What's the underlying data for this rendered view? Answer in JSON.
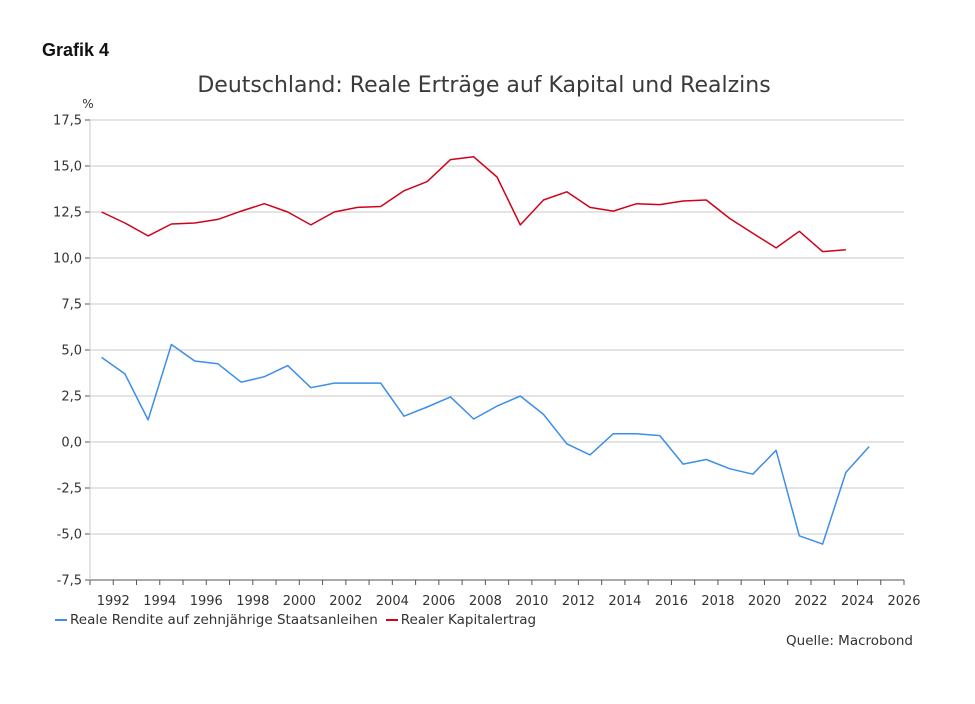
{
  "header": {
    "label": "Grafik 4"
  },
  "source": "Quelle: Macrobond",
  "colors": {
    "red": "#d0021b",
    "blue": "#3d8ee8",
    "grid": "#c8c8c8",
    "axis": "#555555"
  },
  "chart_data": {
    "type": "line",
    "title": "Deutschland: Reale Erträge auf Kapital und Realzins",
    "ylabel": "%",
    "ylim": [
      -7.5,
      17.5
    ],
    "yticks": [
      -7.5,
      -5.0,
      -2.5,
      0.0,
      2.5,
      5.0,
      7.5,
      10.0,
      12.5,
      15.0,
      17.5
    ],
    "ytick_labels": [
      "-7,5",
      "-5,0",
      "-2,5",
      "0,0",
      "2,5",
      "5,0",
      "7,5",
      "10,0",
      "12,5",
      "15,0",
      "17,5"
    ],
    "xlim": [
      1991,
      2026
    ],
    "xticks": [
      1992,
      1994,
      1996,
      1998,
      2000,
      2002,
      2004,
      2006,
      2008,
      2010,
      2012,
      2014,
      2016,
      2018,
      2020,
      2022,
      2024,
      2026
    ],
    "xtick_labels": [
      "1992",
      "1994",
      "1996",
      "1998",
      "2000",
      "2002",
      "2004",
      "2006",
      "2008",
      "2010",
      "2012",
      "2014",
      "2016",
      "2018",
      "2020",
      "2022",
      "2024",
      "2026"
    ],
    "grid": true,
    "legend_position": "bottom-left",
    "series": [
      {
        "name": "Reale Rendite auf zehnjährige Staatsanleihen",
        "color": "#3d8ee8",
        "x": [
          1991.5,
          1992.5,
          1993.5,
          1994.5,
          1995.5,
          1996.5,
          1997.5,
          1998.5,
          1999.5,
          2000.5,
          2001.5,
          2002.5,
          2003.5,
          2004.5,
          2005.5,
          2006.5,
          2007.5,
          2008.5,
          2009.5,
          2010.5,
          2011.5,
          2012.5,
          2013.5,
          2014.5,
          2015.5,
          2016.5,
          2017.5,
          2018.5,
          2019.5,
          2020.5,
          2021.5,
          2022.5,
          2023.5,
          2024.5
        ],
        "values": [
          4.6,
          3.7,
          1.2,
          5.3,
          4.4,
          4.25,
          3.25,
          3.55,
          4.15,
          2.95,
          3.2,
          3.2,
          3.2,
          1.4,
          1.9,
          2.45,
          1.25,
          1.95,
          2.5,
          1.5,
          -0.1,
          -0.7,
          0.45,
          0.45,
          0.35,
          -1.2,
          -0.95,
          -1.45,
          -1.75,
          -0.45,
          -5.1,
          -5.55,
          -1.65,
          -0.25
        ]
      },
      {
        "name": "Realer Kapitalertrag",
        "color": "#d0021b",
        "x": [
          1991.5,
          1992.5,
          1993.5,
          1994.5,
          1995.5,
          1996.5,
          1997.5,
          1998.5,
          1999.5,
          2000.5,
          2001.5,
          2002.5,
          2003.5,
          2004.5,
          2005.5,
          2006.5,
          2007.5,
          2008.5,
          2009.5,
          2010.5,
          2011.5,
          2012.5,
          2013.5,
          2014.5,
          2015.5,
          2016.5,
          2017.5,
          2018.5,
          2019.5,
          2020.5,
          2021.5,
          2022.5,
          2023.5
        ],
        "values": [
          12.5,
          11.9,
          11.2,
          11.85,
          11.9,
          12.1,
          12.55,
          12.95,
          12.5,
          11.8,
          12.5,
          12.75,
          12.8,
          13.65,
          14.15,
          15.35,
          15.5,
          14.4,
          11.8,
          13.15,
          13.6,
          12.75,
          12.55,
          12.95,
          12.9,
          13.1,
          13.15,
          12.15,
          11.35,
          10.55,
          11.45,
          10.35,
          10.45
        ]
      }
    ]
  }
}
